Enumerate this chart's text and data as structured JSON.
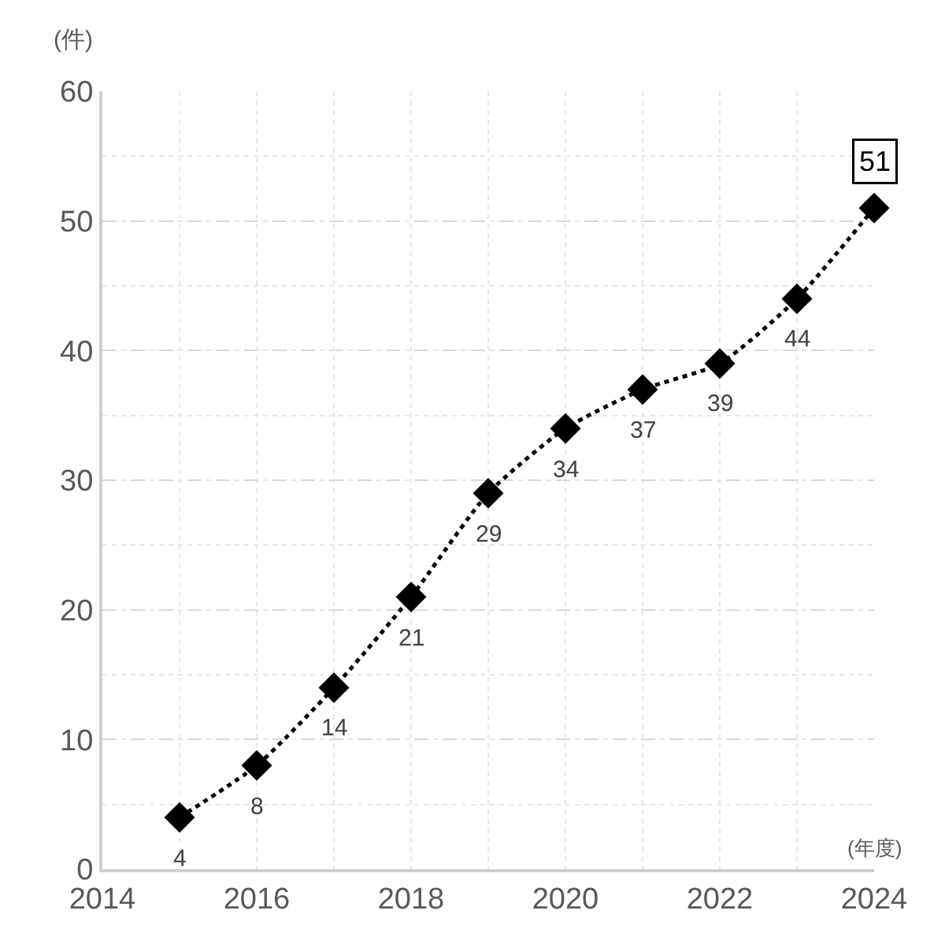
{
  "chart_data": {
    "type": "line",
    "xlabel": "(年度)",
    "ylabel": "(件)",
    "x": [
      2015,
      2016,
      2017,
      2018,
      2019,
      2020,
      2021,
      2022,
      2023,
      2024
    ],
    "series": [
      {
        "color": "#000000",
        "values": [
          4,
          8,
          14,
          21,
          29,
          34,
          37,
          39,
          44,
          51
        ]
      }
    ],
    "data_labels": true,
    "marker": "diamond",
    "line_style": "dotted",
    "grid": true,
    "xlim": [
      2014,
      2024
    ],
    "xticks": [
      2014,
      2016,
      2018,
      2020,
      2022,
      2024
    ],
    "ylim": [
      0,
      60
    ],
    "yticks": [
      0,
      10,
      20,
      30,
      40,
      50,
      60
    ]
  }
}
